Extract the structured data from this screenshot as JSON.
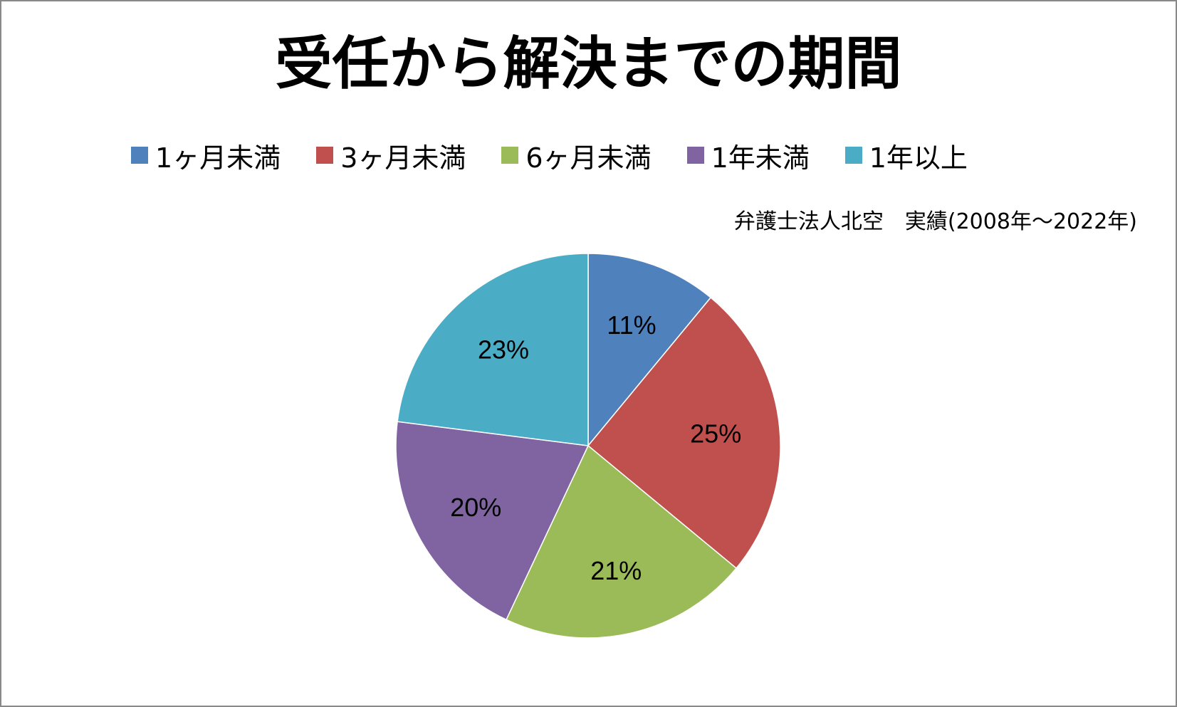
{
  "chart_data": {
    "type": "pie",
    "title": "受任から解決までの期間",
    "subtitle": "弁護士法人北空　実績(2008年～2022年)",
    "legend_position": "top",
    "slices": [
      {
        "label": "1ヶ月未満",
        "value": 11,
        "value_label": "11%",
        "color": "#4F81BD"
      },
      {
        "label": "3ヶ月未満",
        "value": 25,
        "value_label": "25%",
        "color": "#C0504D"
      },
      {
        "label": "6ヶ月未満",
        "value": 21,
        "value_label": "21%",
        "color": "#9BBB59"
      },
      {
        "label": "1年未満",
        "value": 20,
        "value_label": "20%",
        "color": "#8064A2"
      },
      {
        "label": "1年以上",
        "value": 23,
        "value_label": "23%",
        "color": "#4BACC6"
      }
    ]
  }
}
